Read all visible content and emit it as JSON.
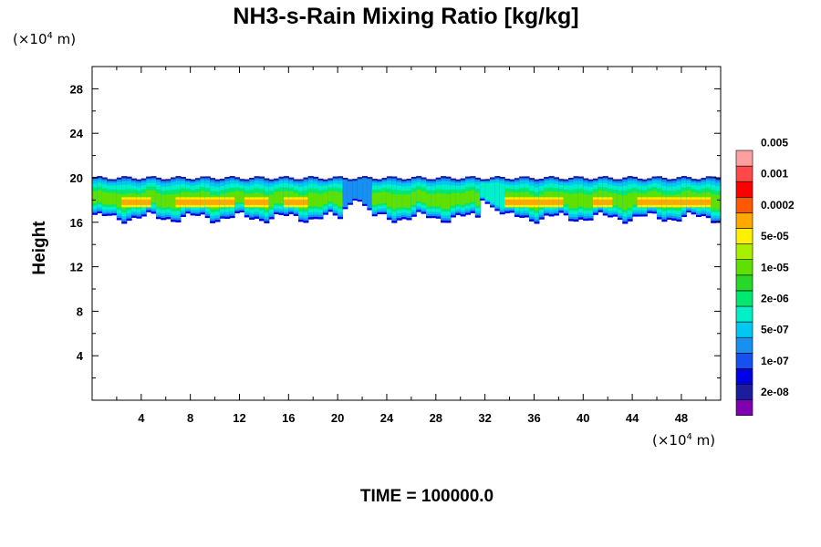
{
  "chart_data": {
    "type": "heatmap",
    "title": "NH3-s-Rain Mixing Ratio [kg/kg]",
    "ylabel": "Height",
    "x_unit": {
      "prefix": "(×10",
      "exp": "4",
      "suffix": " m)"
    },
    "y_unit": {
      "prefix": "(×10",
      "exp": "4",
      "suffix": " m)"
    },
    "xlim": [
      0,
      51.2
    ],
    "ylim": [
      0,
      30
    ],
    "xticks": [
      4,
      8,
      12,
      16,
      20,
      24,
      28,
      32,
      36,
      40,
      44,
      48
    ],
    "yticks": [
      4,
      8,
      12,
      16,
      20,
      24,
      28
    ],
    "footer": "TIME = 100000.0",
    "colorbar": {
      "colors": [
        "#7f00b0",
        "#1c1c9c",
        "#0000e6",
        "#1850f0",
        "#1890f0",
        "#00c8f0",
        "#00f0c8",
        "#00e870",
        "#28d828",
        "#60e000",
        "#a8f000",
        "#fff000",
        "#ffa800",
        "#ff5800",
        "#ff0000",
        "#ff4848",
        "#ffa0a0"
      ],
      "labels": [
        "2e-08",
        "1e-07",
        "5e-07",
        "2e-06",
        "1e-05",
        "5e-05",
        "0.0002",
        "0.001",
        "0.005"
      ]
    },
    "layer": {
      "bottom_height": 16.5,
      "top_height": 20,
      "deep_bottom_height": 16.2,
      "core_height": 17.8,
      "gap_x": [
        20.3,
        22.8
      ],
      "dip_x": [
        31.5,
        33.8
      ],
      "core_segments": [
        [
          2.5,
          5.0
        ],
        [
          7.0,
          11.5
        ],
        [
          12.5,
          14.5
        ],
        [
          15.5,
          17.5
        ],
        [
          33.8,
          38.5
        ],
        [
          40.8,
          42.3
        ],
        [
          44.5,
          50.5
        ]
      ]
    }
  }
}
